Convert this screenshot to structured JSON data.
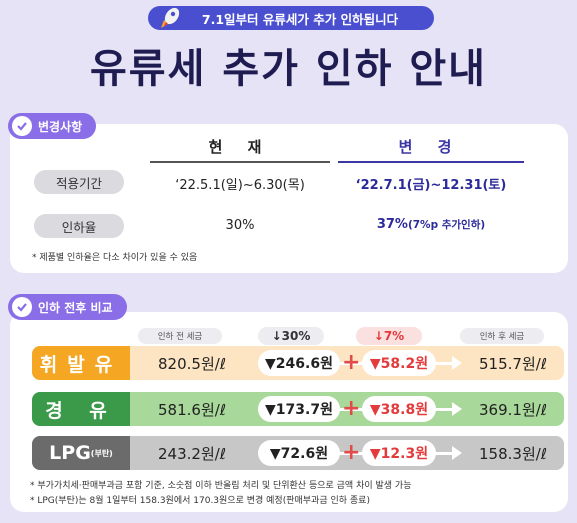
{
  "header": {
    "badge": "7.1일부터 유류세가 추가 인하됩니다",
    "title": "유류세 추가 인하 안내"
  },
  "changes": {
    "section_label": "변경사항",
    "col_current": "현 재",
    "col_changed": "변 경",
    "rows": [
      {
        "label": "적용기간",
        "current": "‘22.5.1(일)~6.30(목)",
        "changed": "‘22.7.1(금)~12.31(토)"
      },
      {
        "label": "인하율",
        "current": "30%",
        "changed_main": "37%",
        "changed_sub": "(7%p 추가인하)"
      }
    ],
    "note": "* 제품별 인하율은 다소 차이가 있을 수 있음"
  },
  "compare": {
    "section_label": "인하 전후 비교",
    "head_before": "인하 전 세금",
    "head_30": "↓30%",
    "head_7": "↓7%",
    "head_after": "인하 후 세금",
    "fuels": [
      {
        "name": "휘발유",
        "sub": "",
        "before": "820.5원/ℓ",
        "cut30": "▼246.6원",
        "cut7": "▼58.2원",
        "after": "515.7원/ℓ",
        "color": "#f5a623",
        "bg": "#fde4c3"
      },
      {
        "name": "경 유",
        "sub": "",
        "before": "581.6원/ℓ",
        "cut30": "▼173.7원",
        "cut7": "▼38.8원",
        "after": "369.1원/ℓ",
        "color": "#3b9a4a",
        "bg": "#a8d89a"
      },
      {
        "name": "LPG",
        "sub": "(부탄)",
        "before": "243.2원/ℓ",
        "cut30": "▼72.6원",
        "cut7": "▼12.3원",
        "after": "158.3원/ℓ",
        "color": "#6b6b6b",
        "bg": "#c7c7c7"
      }
    ],
    "plus": "+",
    "notes": [
      "* 부가가치세·판매부과금 포함 기준, 소숫점 이하 반올림 처리 및 단위환산 등으로 금액 차이 발생 가능",
      "* LPG(부탄)는 8월 1일부터 158.3원에서 170.3원으로 변경 예정(판매부과금 인하 종료)"
    ]
  },
  "colors": {
    "accent": "#4a4fd0",
    "section": "#8a6ee8",
    "navy": "#1f1c52",
    "red": "#e33b3b"
  }
}
